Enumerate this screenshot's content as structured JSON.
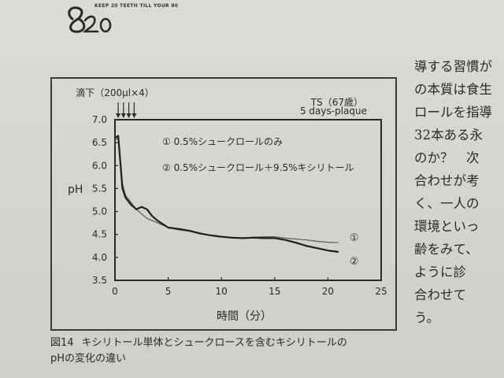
{
  "logo": {
    "mark": "8020",
    "text": "KEEP 20 TEETH TILL YOUR 80"
  },
  "chart_data": {
    "type": "line",
    "xlabel": "時間（分）",
    "ylabel": "pH",
    "xlim": [
      0,
      25
    ],
    "ylim": [
      3.5,
      7.0
    ],
    "x_ticks": [
      0,
      5,
      10,
      15,
      20,
      25
    ],
    "y_ticks": [
      "3.5",
      "4.0",
      "4.5",
      "5.0",
      "5.5",
      "6.0",
      "6.5",
      "7.0"
    ],
    "grid": false,
    "annotations": {
      "drop_label": "滴下（200μl×4）",
      "subject_line1": "TS（67歳）",
      "subject_line2": "5 days-plaque",
      "legend_1": "① 0.5%シュークロールのみ",
      "legend_2": "② 0.5%シュークロール＋9.5%キシリトール",
      "end_label_1": "①",
      "end_label_2": "②"
    },
    "drop_times": [
      0.3,
      0.8,
      1.3,
      1.8
    ],
    "series": [
      {
        "values": [
          [
            0,
            6.55
          ],
          [
            0.3,
            6.6
          ],
          [
            0.7,
            5.6
          ],
          [
            1.0,
            5.35
          ],
          [
            1.5,
            5.2
          ],
          [
            2.0,
            5.05
          ],
          [
            2.5,
            4.95
          ],
          [
            3.0,
            4.85
          ],
          [
            4.0,
            4.75
          ],
          [
            5.0,
            4.65
          ],
          [
            6.0,
            4.6
          ],
          [
            7.0,
            4.57
          ],
          [
            8.0,
            4.52
          ],
          [
            9.0,
            4.48
          ],
          [
            10.0,
            4.45
          ],
          [
            11.0,
            4.42
          ],
          [
            12.0,
            4.42
          ],
          [
            13.0,
            4.44
          ],
          [
            14.0,
            4.45
          ],
          [
            15.0,
            4.45
          ],
          [
            16.0,
            4.42
          ],
          [
            17.0,
            4.4
          ],
          [
            18.0,
            4.38
          ],
          [
            19.0,
            4.35
          ],
          [
            20.0,
            4.33
          ],
          [
            21.0,
            4.32
          ]
        ],
        "color": "#5a5a5a"
      },
      {
        "values": [
          [
            0,
            6.6
          ],
          [
            0.3,
            6.65
          ],
          [
            0.7,
            5.5
          ],
          [
            1.0,
            5.3
          ],
          [
            1.5,
            5.15
          ],
          [
            2.0,
            5.05
          ],
          [
            2.5,
            5.1
          ],
          [
            3.0,
            5.05
          ],
          [
            3.5,
            4.9
          ],
          [
            4.0,
            4.8
          ],
          [
            5.0,
            4.65
          ],
          [
            6.0,
            4.62
          ],
          [
            7.0,
            4.58
          ],
          [
            8.0,
            4.52
          ],
          [
            9.0,
            4.48
          ],
          [
            10.0,
            4.45
          ],
          [
            11.0,
            4.43
          ],
          [
            12.0,
            4.42
          ],
          [
            13.0,
            4.43
          ],
          [
            14.0,
            4.42
          ],
          [
            15.0,
            4.42
          ],
          [
            16.0,
            4.38
          ],
          [
            17.0,
            4.32
          ],
          [
            18.0,
            4.25
          ],
          [
            19.0,
            4.2
          ],
          [
            20.0,
            4.15
          ],
          [
            21.0,
            4.12
          ]
        ],
        "color": "#1e1e1e"
      }
    ]
  },
  "caption": {
    "figure_number": "図14",
    "line1": "キシリトール単体とシュークロースを含むキシリトールの",
    "line2": "pHの変化の違い"
  },
  "side_text": {
    "lines": [
      "導する習慣が",
      "の本質は食生",
      "ロールを指導",
      "32本ある永",
      "のか？　次",
      "合わせが考",
      "く、一人の",
      "環境といっ",
      "齢をみて、",
      "ように診",
      "合わせて",
      "う。"
    ]
  }
}
